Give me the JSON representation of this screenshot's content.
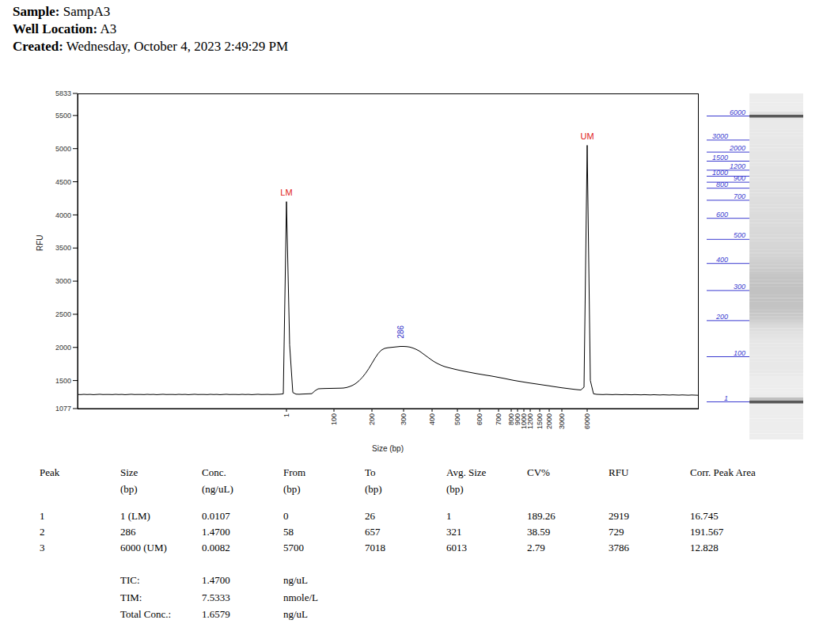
{
  "header": [
    {
      "label": "Sample:",
      "value": "SampA3"
    },
    {
      "label": "Well Location:",
      "value": "A3"
    },
    {
      "label": "Created:",
      "value": "Wednesday, October 4, 2023 2:49:29 PM"
    }
  ],
  "chart_data": {
    "type": "line",
    "x_label": "Size (bp)",
    "y_label": "RFU",
    "color": "#000000",
    "ylim": [
      1077,
      5833
    ],
    "yticks": [
      1077,
      1500,
      2000,
      2500,
      3000,
      3500,
      4000,
      4500,
      5000,
      5500,
      5833
    ],
    "categories": [
      null,
      null,
      null,
      null,
      null,
      null,
      null,
      null,
      null,
      null,
      null,
      null,
      null,
      null,
      null,
      null,
      null,
      null,
      null,
      null,
      null,
      null,
      null,
      null,
      null,
      null,
      null,
      null,
      null,
      null,
      null,
      null,
      null,
      null,
      null,
      null,
      null,
      null,
      null,
      null,
      null,
      null,
      null,
      null,
      null,
      null,
      null,
      null,
      null,
      null,
      null,
      null,
      null,
      null,
      null,
      null,
      null,
      null,
      null,
      null,
      null,
      null,
      null,
      null,
      null,
      null,
      "1",
      null,
      null,
      null,
      null,
      null,
      null,
      null,
      null,
      null,
      null,
      null,
      null,
      null,
      null,
      "100",
      null,
      null,
      null,
      null,
      null,
      null,
      null,
      null,
      null,
      null,
      null,
      "200",
      null,
      null,
      null,
      null,
      null,
      null,
      null,
      null,
      null,
      "300",
      null,
      null,
      null,
      null,
      null,
      null,
      null,
      null,
      "400",
      null,
      null,
      null,
      null,
      null,
      null,
      null,
      "500",
      null,
      null,
      null,
      null,
      null,
      null,
      "600",
      null,
      null,
      null,
      null,
      null,
      "700",
      null,
      null,
      null,
      "800",
      null,
      "900",
      null,
      "1000",
      null,
      "1200",
      null,
      null,
      "1500",
      null,
      null,
      "2000",
      null,
      null,
      null,
      "3000",
      null,
      null,
      null,
      null,
      null,
      null,
      null,
      "6000",
      null,
      null,
      null,
      null,
      null,
      null,
      null,
      null,
      null,
      null,
      null,
      null,
      null,
      null,
      null,
      null,
      null,
      null,
      null,
      null,
      null,
      null,
      null,
      null,
      null,
      null,
      null,
      null,
      null,
      null,
      null,
      null,
      null,
      null,
      null
    ],
    "values": [
      1290,
      1288,
      1292,
      1289,
      1291,
      1287,
      1290,
      1293,
      1289,
      1290,
      1290,
      1288,
      1292,
      1289,
      1291,
      1287,
      1290,
      1293,
      1289,
      1290,
      1290,
      1288,
      1292,
      1289,
      1291,
      1287,
      1290,
      1293,
      1289,
      1290,
      1290,
      1288,
      1292,
      1289,
      1291,
      1287,
      1290,
      1293,
      1289,
      1290,
      1290,
      1288,
      1292,
      1289,
      1291,
      1287,
      1290,
      1293,
      1289,
      1290,
      1290,
      1288,
      1292,
      1289,
      1291,
      1287,
      1290,
      1293,
      1289,
      1290,
      1291,
      1289,
      1290,
      1292,
      1294,
      1300,
      4200,
      2040,
      1320,
      1295,
      1293,
      1296,
      1298,
      1300,
      1302,
      1345,
      1375,
      1378,
      1380,
      1381,
      1382,
      1383,
      1384,
      1385,
      1387,
      1395,
      1410,
      1430,
      1460,
      1500,
      1550,
      1610,
      1680,
      1760,
      1840,
      1910,
      1960,
      1985,
      1995,
      2000,
      2005,
      2010,
      2015,
      2015,
      2012,
      2005,
      1990,
      1970,
      1945,
      1910,
      1875,
      1840,
      1805,
      1775,
      1750,
      1728,
      1710,
      1697,
      1685,
      1673,
      1662,
      1652,
      1642,
      1632,
      1623,
      1614,
      1605,
      1597,
      1589,
      1581,
      1574,
      1566,
      1557,
      1548,
      1539,
      1530,
      1520,
      1510,
      1501,
      1493,
      1485,
      1477,
      1469,
      1462,
      1455,
      1448,
      1441,
      1434,
      1427,
      1420,
      1412,
      1405,
      1398,
      1391,
      1385,
      1379,
      1373,
      1367,
      1362,
      1358,
      1400,
      5050,
      1500,
      1300,
      1292,
      1290,
      1288,
      1291,
      1289,
      1287,
      1290,
      1288,
      1286,
      1289,
      1287,
      1285,
      1288,
      1286,
      1284,
      1287,
      1285,
      1283,
      1286,
      1284,
      1282,
      1285,
      1283,
      1281,
      1284,
      1282,
      1280,
      1283,
      1281,
      1279,
      1282,
      1280,
      1278
    ],
    "point_labels": [
      null,
      null,
      null,
      null,
      null,
      null,
      null,
      null,
      null,
      null,
      null,
      null,
      null,
      null,
      null,
      null,
      null,
      null,
      null,
      null,
      null,
      null,
      null,
      null,
      null,
      null,
      null,
      null,
      null,
      null,
      null,
      null,
      null,
      null,
      null,
      null,
      null,
      null,
      null,
      null,
      null,
      null,
      null,
      null,
      null,
      null,
      null,
      null,
      null,
      null,
      null,
      null,
      null,
      null,
      null,
      null,
      null,
      null,
      null,
      null,
      null,
      null,
      null,
      null,
      null,
      null,
      {
        "text": "LM",
        "color": "#e02020"
      },
      null,
      null,
      null,
      null,
      null,
      null,
      null,
      null,
      null,
      null,
      null,
      null,
      null,
      null,
      null,
      null,
      null,
      null,
      null,
      null,
      null,
      null,
      null,
      null,
      null,
      null,
      null,
      null,
      null,
      null,
      null,
      null,
      null,
      null,
      null,
      {
        "text": "286",
        "color": "#3030c8"
      },
      null,
      null,
      null,
      null,
      null,
      null,
      null,
      null,
      null,
      null,
      null,
      null,
      null,
      null,
      null,
      null,
      null,
      null,
      null,
      null,
      null,
      null,
      null,
      null,
      null,
      null,
      null,
      null,
      null,
      null,
      null,
      null,
      null,
      null,
      null,
      null,
      null,
      null,
      null,
      null,
      null,
      null,
      null,
      null,
      null,
      null,
      null,
      null,
      null,
      null,
      null,
      null,
      null,
      null,
      null,
      null,
      null,
      null,
      {
        "text": "UM",
        "color": "#e02020"
      },
      null,
      null,
      null,
      null,
      null,
      null,
      null,
      null,
      null,
      null,
      null,
      null,
      null,
      null,
      null,
      null,
      null,
      null,
      null,
      null,
      null,
      null,
      null,
      null,
      null,
      null,
      null,
      null,
      null,
      null,
      null,
      null,
      null,
      null,
      null
    ]
  },
  "table": {
    "columns": [
      {
        "name": "Peak"
      },
      {
        "name": "Size",
        "unit": "(bp)"
      },
      {
        "name": "Conc.",
        "unit": "(ng/uL)"
      },
      {
        "name": "From",
        "unit": "(bp)"
      },
      {
        "name": "To",
        "unit": "(bp)"
      },
      {
        "name": "Avg. Size",
        "unit": "(bp)"
      },
      {
        "name": "CV%"
      },
      {
        "name": "RFU"
      },
      {
        "name": "Corr. Peak Area"
      }
    ],
    "rows": [
      [
        "1",
        "1 (LM)",
        "0.0107",
        "0",
        "26",
        "1",
        "189.26",
        "2919",
        "16.745"
      ],
      [
        "2",
        "286",
        "1.4700",
        "58",
        "657",
        "321",
        "38.59",
        "729",
        "191.567"
      ],
      [
        "3",
        "6000 (UM)",
        "0.0082",
        "5700",
        "7018",
        "6013",
        "2.79",
        "3786",
        "12.828"
      ]
    ],
    "summary": [
      {
        "label": "TIC:",
        "value": "1.4700",
        "unit": "ng/uL"
      },
      {
        "label": "TIM:",
        "value": "7.5333",
        "unit": "nmole/L"
      },
      {
        "label": "Total Conc.:",
        "value": "1.6579",
        "unit": "ng/uL"
      }
    ]
  }
}
